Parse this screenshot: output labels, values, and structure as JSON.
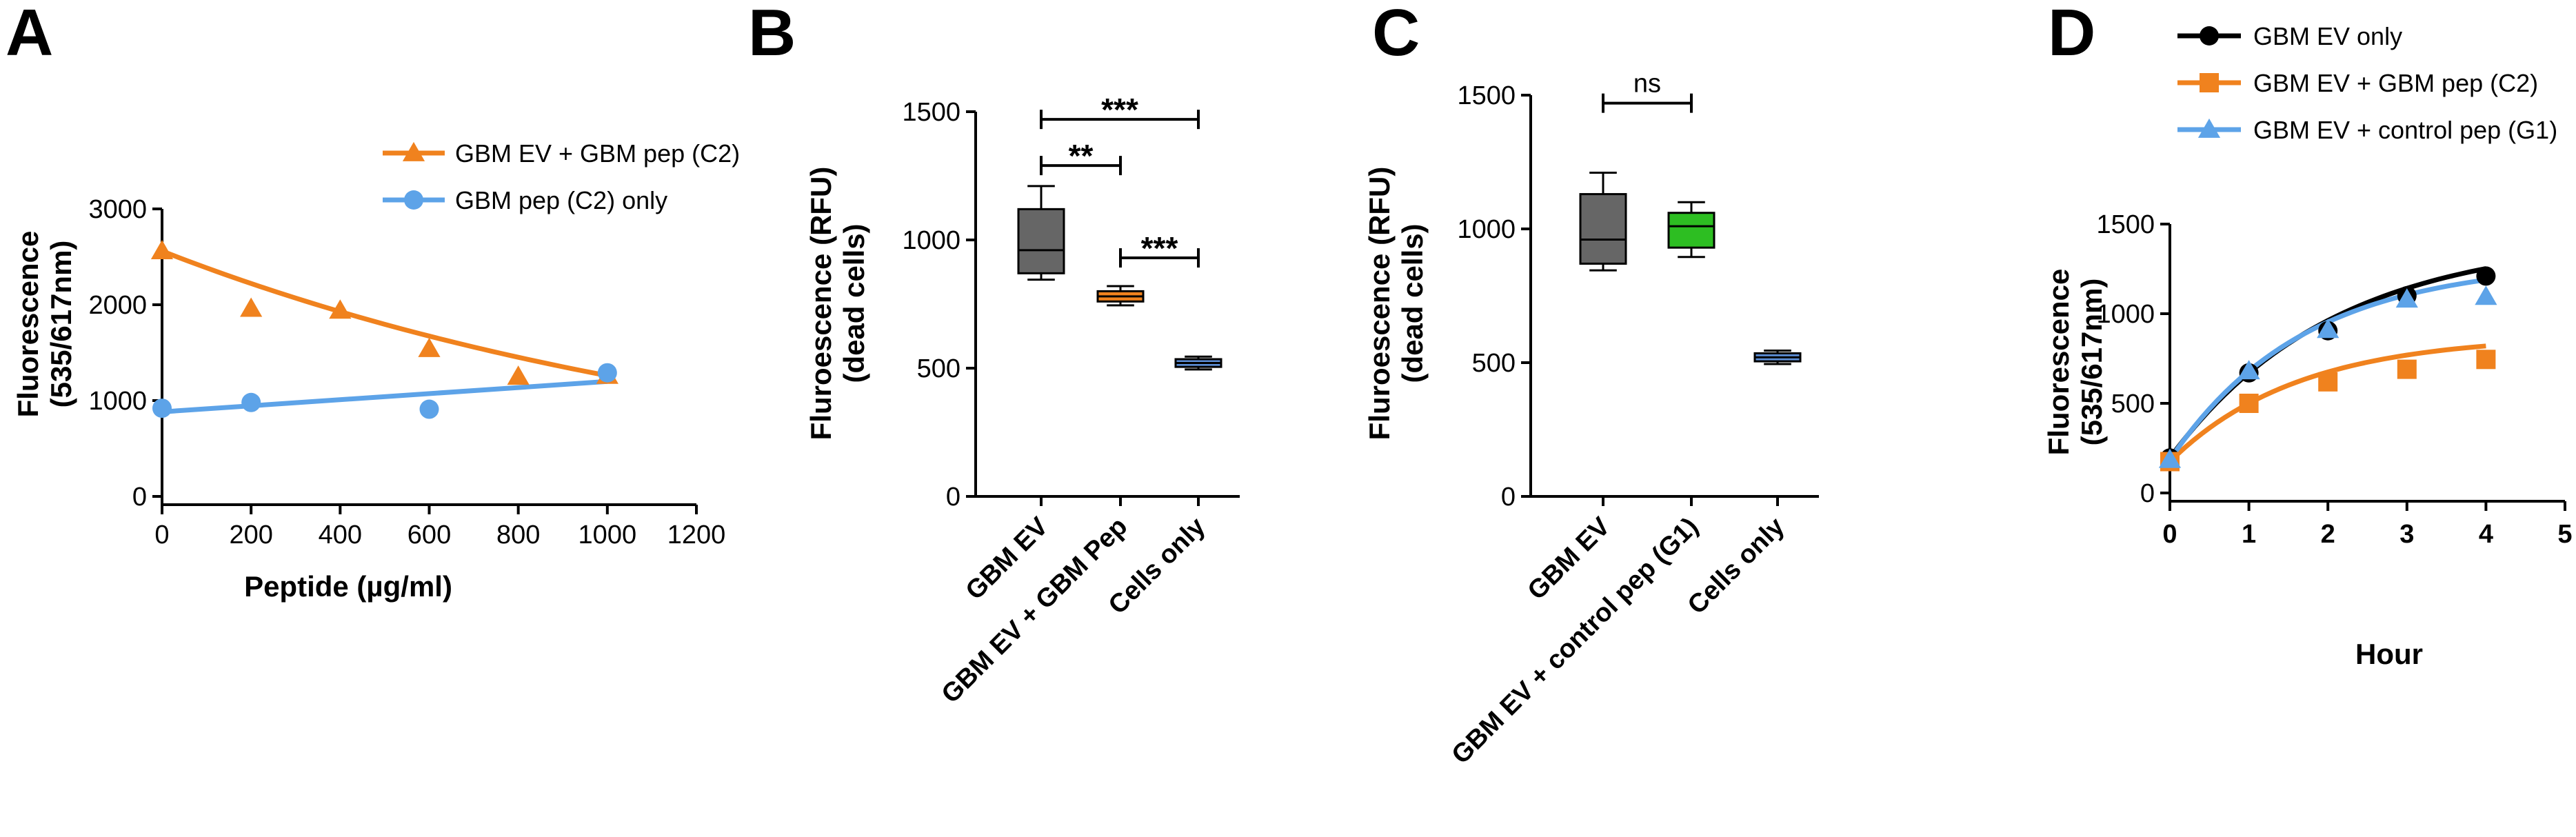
{
  "figure": {
    "panels": [
      "A",
      "B",
      "C",
      "D"
    ]
  },
  "chart_data": [
    {
      "panel": "A",
      "type": "scatter",
      "title": "",
      "xlabel": "Peptide (µg/ml)",
      "ylabel_lines": [
        "Fluorescence",
        "(535/617nm)"
      ],
      "xlim": [
        0,
        1200
      ],
      "ylim": [
        0,
        3000
      ],
      "xticks": [
        0,
        200,
        400,
        600,
        800,
        1000,
        1200
      ],
      "yticks": [
        0,
        1000,
        2000,
        3000
      ],
      "legend_position": "top-right",
      "series": [
        {
          "name": "GBM EV + GBM pep (C2)",
          "color": "#F0821E",
          "marker": "triangle",
          "x": [
            0,
            200,
            400,
            600,
            800,
            1000
          ],
          "y": [
            2560,
            1960,
            1940,
            1540,
            1250,
            1260
          ],
          "fit": "exponential-decay"
        },
        {
          "name": "GBM pep (C2) only",
          "color": "#5DA3E8",
          "marker": "circle",
          "x": [
            0,
            200,
            600,
            1000
          ],
          "y": [
            920,
            980,
            910,
            1290
          ],
          "fit": "linear"
        }
      ]
    },
    {
      "panel": "B",
      "type": "box",
      "xlabel": "",
      "ylabel_lines": [
        "Fluroescence (RFU)",
        "(dead cells)"
      ],
      "ylim": [
        0,
        1500
      ],
      "yticks": [
        0,
        500,
        1000,
        1500
      ],
      "categories": [
        "GBM EV",
        "GBM EV + GBM Pep",
        "Cells only"
      ],
      "boxes": [
        {
          "category": "GBM EV",
          "min": 845,
          "q1": 870,
          "median": 960,
          "q3": 1120,
          "max": 1210,
          "color": "#666666"
        },
        {
          "category": "GBM EV + GBM Pep",
          "min": 745,
          "q1": 760,
          "median": 780,
          "q3": 800,
          "max": 820,
          "color": "#F0821E"
        },
        {
          "category": "Cells only",
          "min": 495,
          "q1": 505,
          "median": 520,
          "q3": 535,
          "max": 545,
          "color": "#5D8FD8"
        }
      ],
      "significance": [
        {
          "from": 0,
          "to": 2,
          "y": 1470,
          "label": "***"
        },
        {
          "from": 0,
          "to": 1,
          "y": 1290,
          "label": "**"
        },
        {
          "from": 1,
          "to": 2,
          "y": 930,
          "label": "***"
        }
      ]
    },
    {
      "panel": "C",
      "type": "box",
      "xlabel": "",
      "ylabel_lines": [
        "Fluroescence (RFU)",
        "(dead cells)"
      ],
      "ylim": [
        0,
        1500
      ],
      "yticks": [
        0,
        500,
        1000,
        1500
      ],
      "categories": [
        "GBM EV",
        "GBM EV + control pep (G1)",
        "Cells only"
      ],
      "boxes": [
        {
          "category": "GBM EV",
          "min": 845,
          "q1": 870,
          "median": 960,
          "q3": 1130,
          "max": 1210,
          "color": "#666666"
        },
        {
          "category": "GBM EV + control pep (G1)",
          "min": 895,
          "q1": 930,
          "median": 1010,
          "q3": 1060,
          "max": 1100,
          "color": "#2DBE22"
        },
        {
          "category": "Cells only",
          "min": 495,
          "q1": 505,
          "median": 520,
          "q3": 535,
          "max": 545,
          "color": "#5D8FD8"
        }
      ],
      "significance": [
        {
          "from": 0,
          "to": 1,
          "y": 1470,
          "label": "ns"
        }
      ]
    },
    {
      "panel": "D",
      "type": "line",
      "xlabel": "Hour",
      "ylabel_lines": [
        "Fluorescence",
        "(535/617nm)"
      ],
      "xlim": [
        0,
        5
      ],
      "ylim": [
        0,
        1500
      ],
      "xticks": [
        0,
        1,
        2,
        3,
        4,
        5
      ],
      "yticks": [
        0,
        500,
        1000,
        1500
      ],
      "legend_position": "top-left",
      "series": [
        {
          "name": "GBM EV only",
          "color": "#000000",
          "marker": "circle",
          "x": [
            0,
            1,
            2,
            3,
            4
          ],
          "y": [
            195,
            670,
            905,
            1100,
            1210
          ]
        },
        {
          "name": "GBM EV + GBM pep (C2)",
          "color": "#F0821E",
          "marker": "square",
          "x": [
            0,
            1,
            2,
            3,
            4
          ],
          "y": [
            175,
            500,
            620,
            690,
            745
          ]
        },
        {
          "name": "GBM EV + control pep (G1)",
          "color": "#5DA3E8",
          "marker": "triangle",
          "x": [
            0,
            1,
            2,
            3,
            4
          ],
          "y": [
            185,
            680,
            910,
            1080,
            1095
          ]
        }
      ]
    }
  ]
}
